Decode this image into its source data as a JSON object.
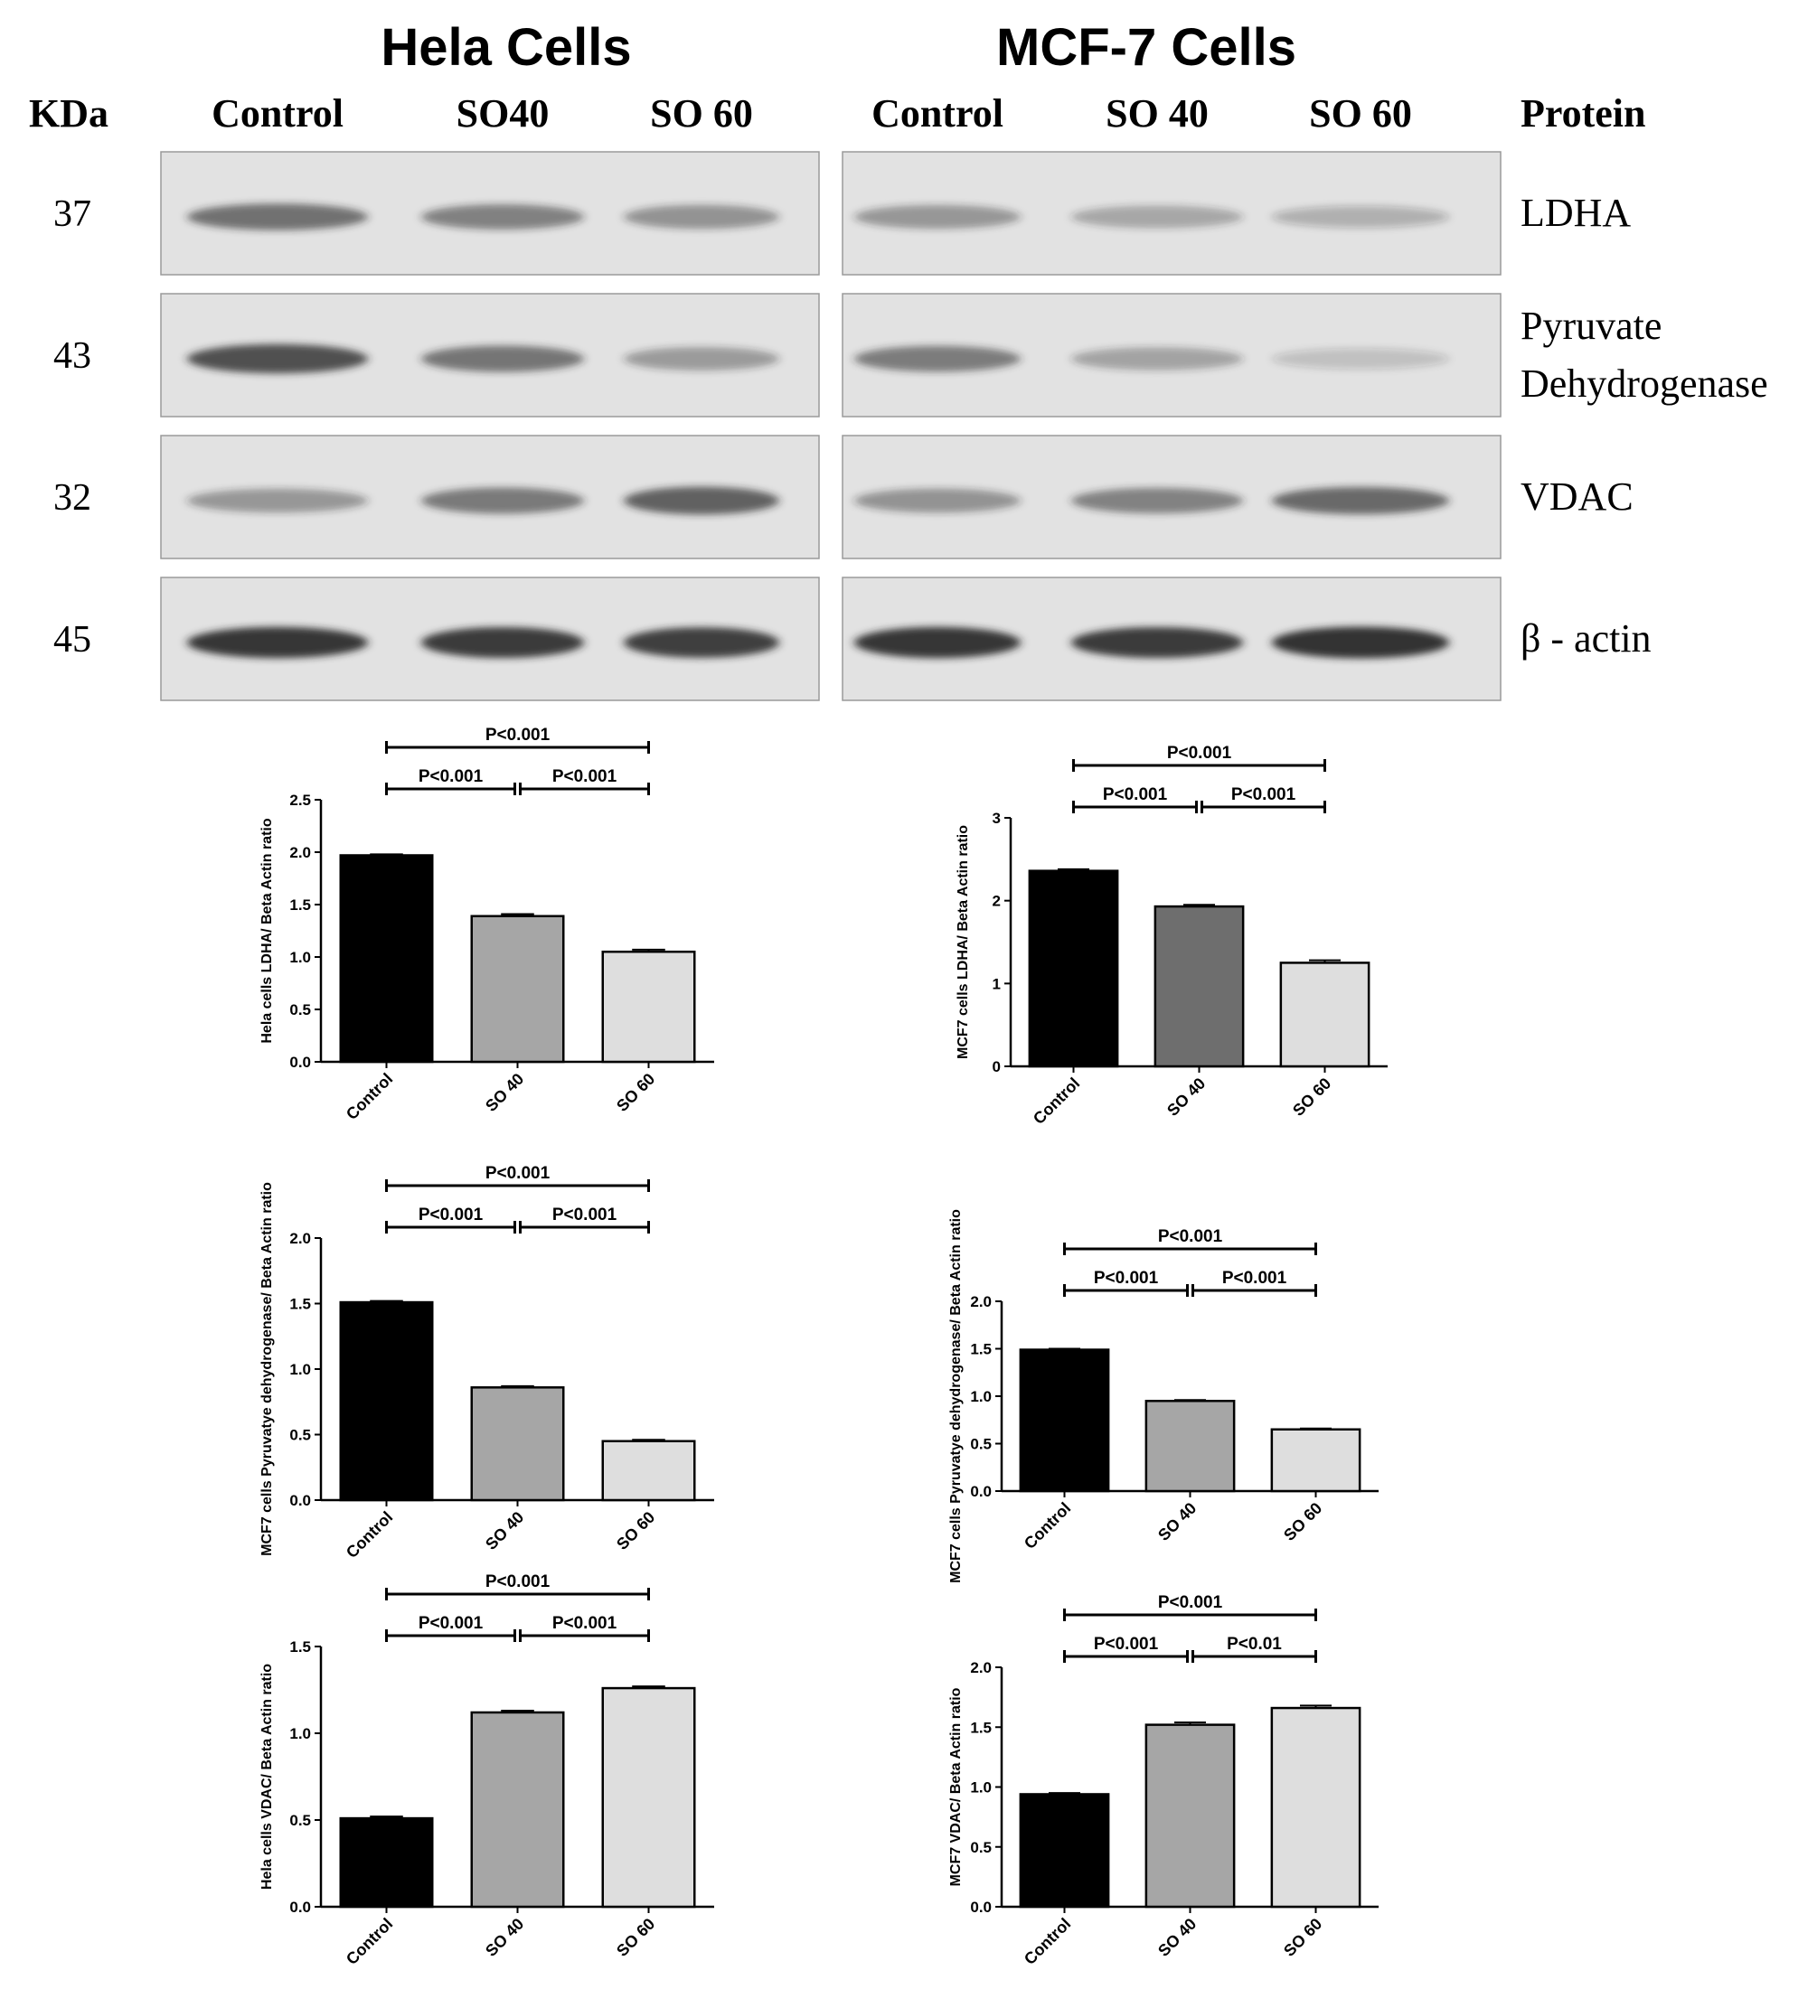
{
  "blot": {
    "panel_titles": [
      "Hela Cells",
      "MCF-7 Cells"
    ],
    "kda_header": "KDa",
    "protein_header": "Protein",
    "lanes": [
      [
        "Control",
        "SO40",
        "SO 60"
      ],
      [
        "Control",
        "SO 40",
        "SO 60"
      ]
    ],
    "rows": [
      {
        "kda": "37",
        "protein": [
          "LDHA"
        ],
        "intensity": [
          [
            0.6,
            0.5,
            0.42
          ],
          [
            0.4,
            0.32,
            0.26
          ]
        ]
      },
      {
        "kda": "43",
        "protein": [
          "Pyruvate",
          "Dehydrogenase"
        ],
        "intensity": [
          [
            0.78,
            0.58,
            0.38
          ],
          [
            0.55,
            0.34,
            0.18
          ]
        ]
      },
      {
        "kda": "32",
        "protein": [
          "VDAC"
        ],
        "intensity": [
          [
            0.4,
            0.56,
            0.68
          ],
          [
            0.42,
            0.52,
            0.64
          ]
        ]
      },
      {
        "kda": "45",
        "protein": [
          "β - actin"
        ],
        "intensity": [
          [
            0.9,
            0.88,
            0.86
          ],
          [
            0.9,
            0.88,
            0.94
          ]
        ]
      }
    ],
    "colors": {
      "membrane": "#e2e2e2",
      "band": "#262626"
    }
  },
  "chart_data": [
    {
      "type": "bar",
      "categories": [
        "Control",
        "SO 40",
        "SO 60"
      ],
      "values": [
        1.97,
        1.39,
        1.05
      ],
      "errors": [
        0.01,
        0.02,
        0.02
      ],
      "ylabel": "Hela cells LDHA/ Beta Actin ratio",
      "ylim": [
        0,
        2.5
      ],
      "yticks": [
        "0.0",
        "0.5",
        "1.0",
        "1.5",
        "2.0",
        "2.5"
      ],
      "bar_colors": [
        "#000000",
        "#a6a6a6",
        "#dedede"
      ],
      "significance": [
        {
          "from": 0,
          "to": 2,
          "label": "P<0.001"
        },
        {
          "from": 0,
          "to": 1,
          "label": "P<0.001"
        },
        {
          "from": 1,
          "to": 2,
          "label": "P<0.001"
        }
      ]
    },
    {
      "type": "bar",
      "categories": [
        "Control",
        "SO 40",
        "SO 60"
      ],
      "values": [
        2.36,
        1.93,
        1.25
      ],
      "errors": [
        0.02,
        0.02,
        0.03
      ],
      "ylabel": "MCF7 cells LDHA/ Beta Actin ratio",
      "ylim": [
        0,
        3
      ],
      "yticks": [
        "0",
        "1",
        "2",
        "3"
      ],
      "bar_colors": [
        "#000000",
        "#6e6e6e",
        "#dedede"
      ],
      "significance": [
        {
          "from": 0,
          "to": 2,
          "label": "P<0.001"
        },
        {
          "from": 0,
          "to": 1,
          "label": "P<0.001"
        },
        {
          "from": 1,
          "to": 2,
          "label": "P<0.001"
        }
      ]
    },
    {
      "type": "bar",
      "categories": [
        "Control",
        "SO 40",
        "SO 60"
      ],
      "values": [
        1.51,
        0.86,
        0.45
      ],
      "errors": [
        0.01,
        0.01,
        0.01
      ],
      "ylabel": "MCF7 cells Pyruvatye dehydrogenase/ Beta Actin ratio",
      "ylim": [
        0,
        2.0
      ],
      "yticks": [
        "0.0",
        "0.5",
        "1.0",
        "1.5",
        "2.0"
      ],
      "bar_colors": [
        "#000000",
        "#a6a6a6",
        "#dedede"
      ],
      "significance": [
        {
          "from": 0,
          "to": 2,
          "label": "P<0.001"
        },
        {
          "from": 0,
          "to": 1,
          "label": "P<0.001"
        },
        {
          "from": 1,
          "to": 2,
          "label": "P<0.001"
        }
      ]
    },
    {
      "type": "bar",
      "categories": [
        "Control",
        "SO 40",
        "SO 60"
      ],
      "values": [
        1.49,
        0.95,
        0.65
      ],
      "errors": [
        0.01,
        0.01,
        0.01
      ],
      "ylabel": "MCF7 cells Pyruvatye dehydrogenase/ Beta Actin ratio",
      "ylim": [
        0,
        2.0
      ],
      "yticks": [
        "0.0",
        "0.5",
        "1.0",
        "1.5",
        "2.0"
      ],
      "bar_colors": [
        "#000000",
        "#a6a6a6",
        "#dedede"
      ],
      "significance": [
        {
          "from": 0,
          "to": 2,
          "label": "P<0.001"
        },
        {
          "from": 0,
          "to": 1,
          "label": "P<0.001"
        },
        {
          "from": 1,
          "to": 2,
          "label": "P<0.001"
        }
      ]
    },
    {
      "type": "bar",
      "categories": [
        "Control",
        "SO 40",
        "SO 60"
      ],
      "values": [
        0.51,
        1.12,
        1.26
      ],
      "errors": [
        0.01,
        0.01,
        0.01
      ],
      "ylabel": "Hela cells VDAC/ Beta Actin ratio",
      "ylim": [
        0,
        1.5
      ],
      "yticks": [
        "0.0",
        "0.5",
        "1.0",
        "1.5"
      ],
      "bar_colors": [
        "#000000",
        "#a6a6a6",
        "#dedede"
      ],
      "significance": [
        {
          "from": 0,
          "to": 2,
          "label": "P<0.001"
        },
        {
          "from": 0,
          "to": 1,
          "label": "P<0.001"
        },
        {
          "from": 1,
          "to": 2,
          "label": "P<0.001"
        }
      ]
    },
    {
      "type": "bar",
      "categories": [
        "Control",
        "SO 40",
        "SO 60"
      ],
      "values": [
        0.94,
        1.52,
        1.66
      ],
      "errors": [
        0.01,
        0.02,
        0.02
      ],
      "ylabel": "MCF7 VDAC/ Beta Actin ratio",
      "ylim": [
        0,
        2.0
      ],
      "yticks": [
        "0.0",
        "0.5",
        "1.0",
        "1.5",
        "2.0"
      ],
      "bar_colors": [
        "#000000",
        "#a6a6a6",
        "#dedede"
      ],
      "significance": [
        {
          "from": 0,
          "to": 2,
          "label": "P<0.001"
        },
        {
          "from": 0,
          "to": 1,
          "label": "P<0.001"
        },
        {
          "from": 1,
          "to": 2,
          "label": "P<0.01"
        }
      ]
    }
  ]
}
